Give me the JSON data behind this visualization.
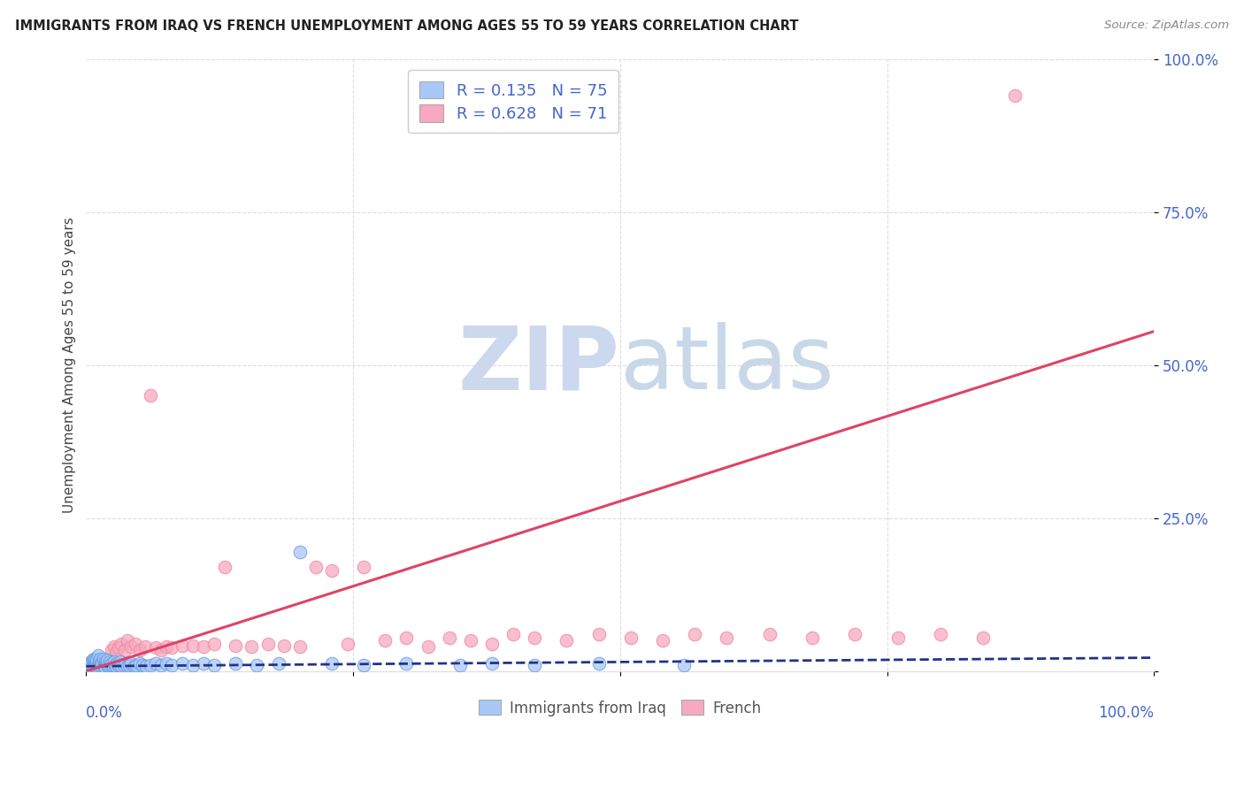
{
  "title": "IMMIGRANTS FROM IRAQ VS FRENCH UNEMPLOYMENT AMONG AGES 55 TO 59 YEARS CORRELATION CHART",
  "source": "Source: ZipAtlas.com",
  "ylabel": "Unemployment Among Ages 55 to 59 years",
  "xlim": [
    0,
    1.0
  ],
  "ylim": [
    0,
    1.0
  ],
  "r_iraq": 0.135,
  "n_iraq": 75,
  "r_french": 0.628,
  "n_french": 71,
  "iraq_color": "#a8c8f8",
  "french_color": "#f8a8c0",
  "iraq_edge_color": "#6699dd",
  "french_edge_color": "#ee8899",
  "iraq_line_color": "#223388",
  "french_line_color": "#dd4466",
  "tick_color": "#4466cc",
  "grid_color": "#dddddd",
  "watermark_color": "#ccd8ee",
  "background_color": "#ffffff",
  "title_color": "#222222",
  "source_color": "#888888",
  "ylabel_color": "#444444",
  "legend_text_color": "#4466cc",
  "bottom_legend_color": "#555555",
  "iraq_scatter_x": [
    0.002,
    0.003,
    0.004,
    0.005,
    0.005,
    0.006,
    0.006,
    0.007,
    0.007,
    0.008,
    0.008,
    0.009,
    0.009,
    0.01,
    0.01,
    0.011,
    0.011,
    0.012,
    0.012,
    0.013,
    0.013,
    0.014,
    0.015,
    0.015,
    0.016,
    0.016,
    0.017,
    0.018,
    0.018,
    0.019,
    0.02,
    0.02,
    0.021,
    0.022,
    0.023,
    0.024,
    0.025,
    0.026,
    0.027,
    0.028,
    0.029,
    0.03,
    0.032,
    0.033,
    0.035,
    0.037,
    0.039,
    0.04,
    0.042,
    0.045,
    0.047,
    0.05,
    0.053,
    0.056,
    0.06,
    0.065,
    0.07,
    0.075,
    0.08,
    0.09,
    0.1,
    0.11,
    0.12,
    0.14,
    0.16,
    0.18,
    0.2,
    0.23,
    0.26,
    0.3,
    0.35,
    0.38,
    0.42,
    0.48,
    0.56
  ],
  "iraq_scatter_y": [
    0.01,
    0.008,
    0.012,
    0.015,
    0.005,
    0.018,
    0.006,
    0.02,
    0.01,
    0.015,
    0.008,
    0.012,
    0.02,
    0.007,
    0.018,
    0.01,
    0.025,
    0.005,
    0.015,
    0.01,
    0.02,
    0.008,
    0.015,
    0.012,
    0.008,
    0.02,
    0.01,
    0.015,
    0.005,
    0.012,
    0.01,
    0.018,
    0.008,
    0.015,
    0.01,
    0.012,
    0.008,
    0.015,
    0.01,
    0.008,
    0.012,
    0.01,
    0.015,
    0.008,
    0.01,
    0.012,
    0.008,
    0.01,
    0.012,
    0.008,
    0.01,
    0.012,
    0.01,
    0.008,
    0.01,
    0.012,
    0.01,
    0.012,
    0.01,
    0.012,
    0.01,
    0.012,
    0.01,
    0.012,
    0.01,
    0.012,
    0.195,
    0.012,
    0.01,
    0.012,
    0.01,
    0.012,
    0.01,
    0.012,
    0.01
  ],
  "french_scatter_x": [
    0.002,
    0.003,
    0.004,
    0.005,
    0.006,
    0.007,
    0.008,
    0.009,
    0.01,
    0.011,
    0.012,
    0.013,
    0.014,
    0.015,
    0.016,
    0.017,
    0.018,
    0.019,
    0.02,
    0.022,
    0.024,
    0.026,
    0.028,
    0.03,
    0.033,
    0.036,
    0.039,
    0.042,
    0.046,
    0.05,
    0.055,
    0.06,
    0.065,
    0.07,
    0.075,
    0.08,
    0.09,
    0.1,
    0.11,
    0.12,
    0.13,
    0.14,
    0.155,
    0.17,
    0.185,
    0.2,
    0.215,
    0.23,
    0.245,
    0.26,
    0.28,
    0.3,
    0.32,
    0.34,
    0.36,
    0.38,
    0.4,
    0.42,
    0.45,
    0.48,
    0.51,
    0.54,
    0.57,
    0.6,
    0.64,
    0.68,
    0.72,
    0.76,
    0.8,
    0.84,
    0.87
  ],
  "french_scatter_y": [
    0.005,
    0.008,
    0.006,
    0.01,
    0.005,
    0.008,
    0.006,
    0.01,
    0.005,
    0.008,
    0.006,
    0.01,
    0.005,
    0.008,
    0.01,
    0.005,
    0.008,
    0.01,
    0.005,
    0.008,
    0.035,
    0.04,
    0.03,
    0.038,
    0.045,
    0.035,
    0.05,
    0.04,
    0.045,
    0.035,
    0.04,
    0.45,
    0.038,
    0.035,
    0.04,
    0.038,
    0.042,
    0.042,
    0.04,
    0.045,
    0.17,
    0.042,
    0.04,
    0.045,
    0.042,
    0.04,
    0.17,
    0.165,
    0.045,
    0.17,
    0.05,
    0.055,
    0.04,
    0.055,
    0.05,
    0.045,
    0.06,
    0.055,
    0.05,
    0.06,
    0.055,
    0.05,
    0.06,
    0.055,
    0.06,
    0.055,
    0.06,
    0.055,
    0.06,
    0.055,
    0.94
  ],
  "iraq_trend_x": [
    0.0,
    1.0
  ],
  "iraq_trend_y": [
    0.008,
    0.022
  ],
  "french_trend_x": [
    0.0,
    1.0
  ],
  "french_trend_y": [
    0.0,
    0.555
  ]
}
